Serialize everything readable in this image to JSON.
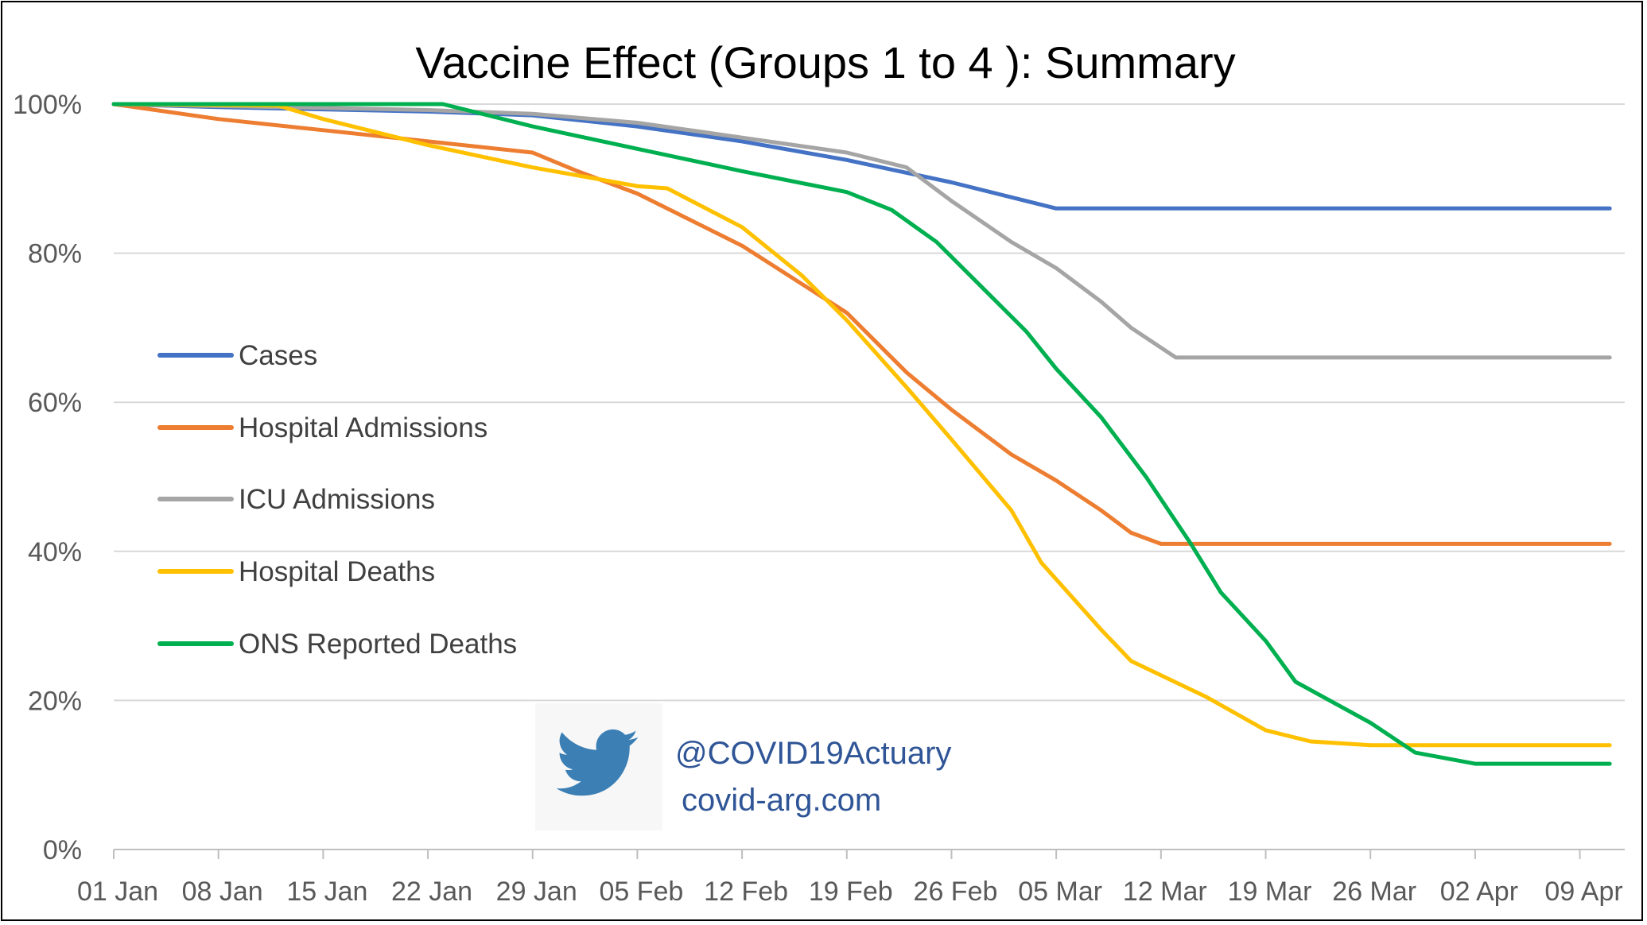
{
  "chart_data": {
    "type": "line",
    "title": "Vaccine Effect (Groups 1 to 4 ): Summary",
    "xlabel": "",
    "ylabel": "",
    "x_tick_labels": [
      "01 Jan",
      "08 Jan",
      "15 Jan",
      "22 Jan",
      "29 Jan",
      "05 Feb",
      "12 Feb",
      "19 Feb",
      "26 Feb",
      "05 Mar",
      "12 Mar",
      "19 Mar",
      "26 Mar",
      "02 Apr",
      "09 Apr"
    ],
    "x_range_days": [
      0,
      101
    ],
    "y_tick_labels": [
      "0%",
      "20%",
      "40%",
      "60%",
      "80%",
      "100%"
    ],
    "ylim": [
      0,
      100
    ],
    "grid": "horizontal",
    "legend_position": "left",
    "series": [
      {
        "name": "Cases",
        "color": "#4472c4",
        "points": [
          [
            0,
            100
          ],
          [
            7,
            99.6
          ],
          [
            14,
            99.3
          ],
          [
            21,
            99
          ],
          [
            28,
            98.5
          ],
          [
            35,
            97
          ],
          [
            42,
            95
          ],
          [
            49,
            92.5
          ],
          [
            56,
            89.5
          ],
          [
            63,
            86
          ],
          [
            70,
            86
          ],
          [
            77,
            86
          ],
          [
            84,
            86
          ],
          [
            91,
            86
          ],
          [
            98,
            86
          ],
          [
            100,
            86
          ]
        ]
      },
      {
        "name": "Hospital Admissions",
        "color": "#ed7d31",
        "points": [
          [
            0,
            100
          ],
          [
            7,
            98
          ],
          [
            14,
            96.5
          ],
          [
            21,
            95
          ],
          [
            28,
            93.5
          ],
          [
            31,
            91
          ],
          [
            35,
            88
          ],
          [
            42,
            81
          ],
          [
            49,
            72
          ],
          [
            51,
            68
          ],
          [
            53,
            64
          ],
          [
            56,
            59
          ],
          [
            60,
            53
          ],
          [
            63,
            49.5
          ],
          [
            66,
            45.5
          ],
          [
            68,
            42.5
          ],
          [
            70,
            41
          ],
          [
            77,
            41
          ],
          [
            84,
            41
          ],
          [
            91,
            41
          ],
          [
            98,
            41
          ],
          [
            100,
            41
          ]
        ]
      },
      {
        "name": "ICU Admissions",
        "color": "#a5a5a5",
        "points": [
          [
            0,
            100
          ],
          [
            14,
            99.5
          ],
          [
            21,
            99.2
          ],
          [
            28,
            98.7
          ],
          [
            35,
            97.5
          ],
          [
            42,
            95.5
          ],
          [
            49,
            93.5
          ],
          [
            53,
            91.5
          ],
          [
            56,
            87
          ],
          [
            60,
            81.5
          ],
          [
            63,
            78
          ],
          [
            66,
            73.5
          ],
          [
            68,
            70
          ],
          [
            71,
            66
          ],
          [
            77,
            66
          ],
          [
            84,
            66
          ],
          [
            91,
            66
          ],
          [
            98,
            66
          ],
          [
            100,
            66
          ]
        ]
      },
      {
        "name": "Hospital Deaths",
        "color": "#ffc000",
        "points": [
          [
            0,
            100
          ],
          [
            11,
            99.8
          ],
          [
            14,
            98
          ],
          [
            21,
            94.5
          ],
          [
            28,
            91.5
          ],
          [
            35,
            89
          ],
          [
            37,
            88.7
          ],
          [
            42,
            83.5
          ],
          [
            46,
            77
          ],
          [
            49,
            71
          ],
          [
            53,
            62
          ],
          [
            56,
            55
          ],
          [
            60,
            45.5
          ],
          [
            62,
            38.5
          ],
          [
            66,
            29.5
          ],
          [
            68,
            25.3
          ],
          [
            73,
            20.5
          ],
          [
            77,
            16
          ],
          [
            80,
            14.5
          ],
          [
            84,
            14
          ],
          [
            91,
            14
          ],
          [
            98,
            14
          ],
          [
            100,
            14
          ]
        ]
      },
      {
        "name": "ONS Reported Deaths",
        "color": "#00b050",
        "points": [
          [
            0,
            100
          ],
          [
            22,
            100
          ],
          [
            28,
            97
          ],
          [
            35,
            94
          ],
          [
            42,
            91
          ],
          [
            49,
            88.2
          ],
          [
            52,
            85.8
          ],
          [
            55,
            81.5
          ],
          [
            58,
            75.5
          ],
          [
            61,
            69.5
          ],
          [
            63,
            64.5
          ],
          [
            66,
            58
          ],
          [
            69,
            50
          ],
          [
            72,
            41
          ],
          [
            74,
            34.5
          ],
          [
            77,
            28
          ],
          [
            79,
            22.5
          ],
          [
            84,
            17
          ],
          [
            87,
            13
          ],
          [
            91,
            11.5
          ],
          [
            98,
            11.5
          ],
          [
            100,
            11.5
          ]
        ]
      }
    ]
  },
  "watermark": {
    "icon": "twitter-bird-icon",
    "handle": "@COVID19Actuary",
    "website": "covid-arg.com",
    "icon_color": "#3b7fb5"
  }
}
